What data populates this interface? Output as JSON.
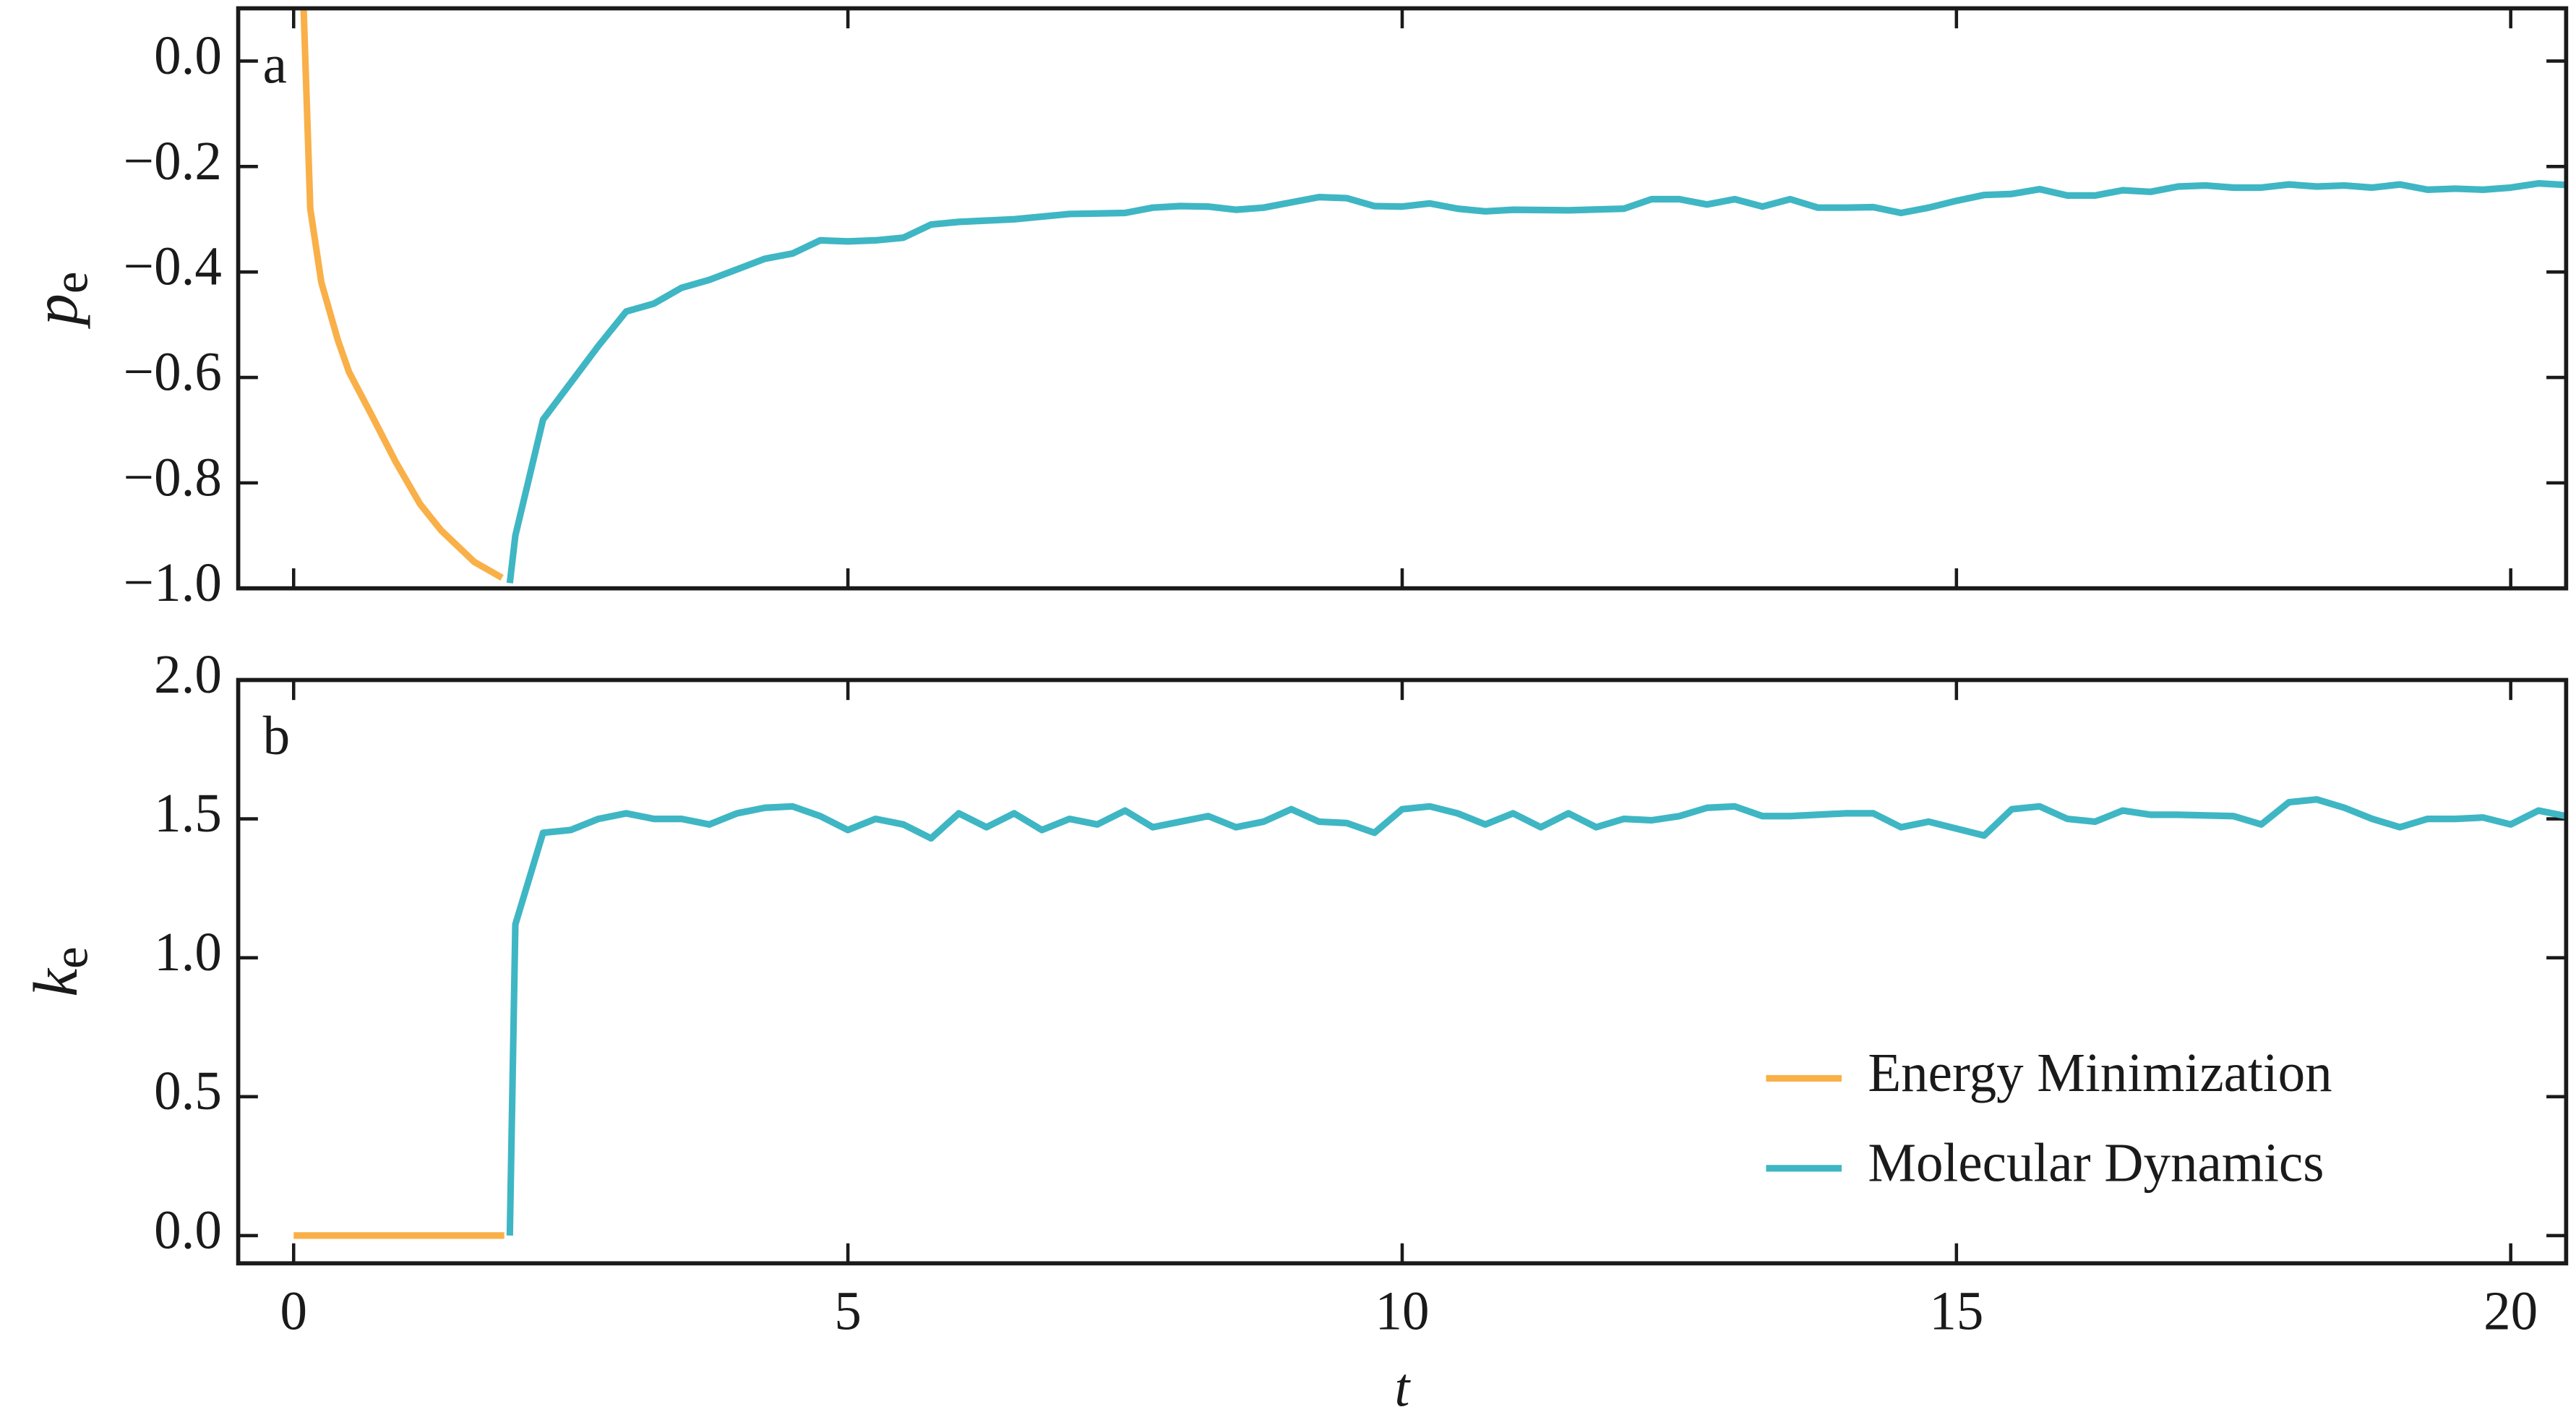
{
  "chart_data": [
    {
      "type": "line",
      "panel_label": "a",
      "ylabel": {
        "symbol": "p",
        "subscript": "e"
      },
      "xlim": [
        -0.5,
        20.5
      ],
      "ylim": [
        -1.0,
        0.1
      ],
      "xticks": [
        0,
        5,
        10,
        15,
        20
      ],
      "xtick_labels": false,
      "yticks": [
        {
          "value": -1.0,
          "label": "−1.0"
        },
        {
          "value": -0.8,
          "label": "−0.8"
        },
        {
          "value": -0.6,
          "label": "−0.6"
        },
        {
          "value": -0.4,
          "label": "−0.4"
        },
        {
          "value": -0.2,
          "label": "−0.2"
        },
        {
          "value": 0,
          "label": "0.0"
        }
      ],
      "series": [
        {
          "color": "#f9b048",
          "x": [
            0.09,
            0.15,
            0.25,
            0.4,
            0.5,
            0.7,
            0.92,
            1.14,
            1.33,
            1.63,
            1.88
          ],
          "values": [
            0.1,
            -0.28,
            -0.42,
            -0.53,
            -0.59,
            -0.67,
            -0.76,
            -0.84,
            -0.89,
            -0.95,
            -0.98
          ]
        },
        {
          "color": "#3fb6c4",
          "x": [
            1.95,
            2.0,
            2.25,
            2.5,
            2.75,
            3.0,
            3.25,
            3.5,
            3.75,
            4.0,
            4.25,
            4.5,
            4.75,
            5.0,
            5.25,
            5.5,
            5.75,
            6.0,
            6.5,
            7.0,
            7.5,
            7.75,
            8.0,
            8.25,
            8.5,
            8.75,
            9.0,
            9.25,
            9.5,
            9.75,
            10.0,
            10.25,
            10.5,
            10.75,
            11.0,
            11.5,
            12.0,
            12.25,
            12.5,
            12.75,
            13.0,
            13.25,
            13.5,
            13.75,
            14.0,
            14.25,
            14.5,
            14.75,
            15.0,
            15.25,
            15.5,
            15.75,
            16.0,
            16.25,
            16.5,
            16.75,
            17.0,
            17.25,
            17.5,
            17.75,
            18.0,
            18.25,
            18.5,
            18.75,
            19.0,
            19.25,
            19.5,
            19.75,
            20.0,
            20.25,
            20.5
          ],
          "values": [
            -0.99,
            -0.9,
            -0.68,
            -0.61,
            -0.54,
            -0.475,
            -0.46,
            -0.43,
            -0.415,
            -0.395,
            -0.375,
            -0.365,
            -0.34,
            -0.342,
            -0.34,
            -0.335,
            -0.31,
            -0.305,
            -0.3,
            -0.29,
            -0.288,
            -0.278,
            -0.275,
            -0.276,
            -0.282,
            -0.278,
            -0.268,
            -0.258,
            -0.26,
            -0.275,
            -0.276,
            -0.27,
            -0.28,
            -0.285,
            -0.282,
            -0.283,
            -0.28,
            -0.262,
            -0.262,
            -0.272,
            -0.262,
            -0.276,
            -0.262,
            -0.278,
            -0.278,
            -0.277,
            -0.288,
            -0.278,
            -0.265,
            -0.254,
            -0.252,
            -0.243,
            -0.255,
            -0.255,
            -0.245,
            -0.248,
            -0.238,
            -0.236,
            -0.24,
            -0.24,
            -0.234,
            -0.238,
            -0.236,
            -0.24,
            -0.234,
            -0.244,
            -0.242,
            -0.244,
            -0.24,
            -0.232,
            -0.235
          ]
        }
      ]
    },
    {
      "type": "line",
      "panel_label": "b",
      "ylabel": {
        "symbol": "k",
        "subscript": "e"
      },
      "xlabel": "t",
      "xlim": [
        -0.5,
        20.5
      ],
      "ylim": [
        -0.1,
        2.0
      ],
      "xticks": [
        0,
        5,
        10,
        15,
        20
      ],
      "xtick_labels": true,
      "yticks": [
        {
          "value": 0,
          "label": "0.0"
        },
        0.5,
        {
          "value": 1.0,
          "label": "1.0"
        },
        1.5,
        {
          "value": 2.0,
          "label": "2.0"
        }
      ],
      "legend": "lower right",
      "series": [
        {
          "name": "Energy Minimization",
          "color": "#f9b048",
          "x": [
            0,
            0.5,
            1.0,
            1.5,
            1.9
          ],
          "values": [
            0,
            0,
            0,
            0,
            0
          ]
        },
        {
          "name": "Molecular Dynamics",
          "color": "#3fb6c4",
          "x": [
            1.95,
            2.0,
            2.25,
            2.5,
            2.75,
            3.0,
            3.25,
            3.5,
            3.75,
            4.0,
            4.25,
            4.5,
            4.75,
            5.0,
            5.25,
            5.5,
            5.75,
            6.0,
            6.25,
            6.5,
            6.75,
            7.0,
            7.25,
            7.5,
            7.75,
            8.0,
            8.25,
            8.5,
            8.75,
            9.0,
            9.25,
            9.5,
            9.75,
            10.0,
            10.25,
            10.5,
            10.75,
            11.0,
            11.25,
            11.5,
            11.75,
            12.0,
            12.25,
            12.5,
            12.75,
            13.0,
            13.25,
            13.5,
            14.0,
            14.25,
            14.5,
            14.75,
            15.0,
            15.25,
            15.5,
            15.75,
            16.0,
            16.25,
            16.5,
            16.75,
            17.0,
            17.5,
            17.75,
            18.0,
            18.25,
            18.5,
            18.75,
            19.0,
            19.25,
            19.5,
            19.75,
            20.0,
            20.25,
            20.5
          ],
          "values": [
            0.0,
            1.12,
            1.45,
            1.46,
            1.5,
            1.52,
            1.5,
            1.5,
            1.48,
            1.52,
            1.54,
            1.545,
            1.51,
            1.46,
            1.5,
            1.48,
            1.43,
            1.52,
            1.47,
            1.52,
            1.46,
            1.5,
            1.48,
            1.53,
            1.47,
            1.49,
            1.51,
            1.47,
            1.49,
            1.535,
            1.49,
            1.485,
            1.45,
            1.535,
            1.545,
            1.52,
            1.48,
            1.52,
            1.47,
            1.52,
            1.47,
            1.5,
            1.495,
            1.51,
            1.54,
            1.545,
            1.51,
            1.51,
            1.52,
            1.52,
            1.47,
            1.49,
            1.465,
            1.44,
            1.535,
            1.545,
            1.5,
            1.49,
            1.53,
            1.515,
            1.515,
            1.51,
            1.48,
            1.56,
            1.57,
            1.54,
            1.5,
            1.47,
            1.5,
            1.5,
            1.505,
            1.48,
            1.53,
            1.51
          ]
        }
      ]
    }
  ]
}
